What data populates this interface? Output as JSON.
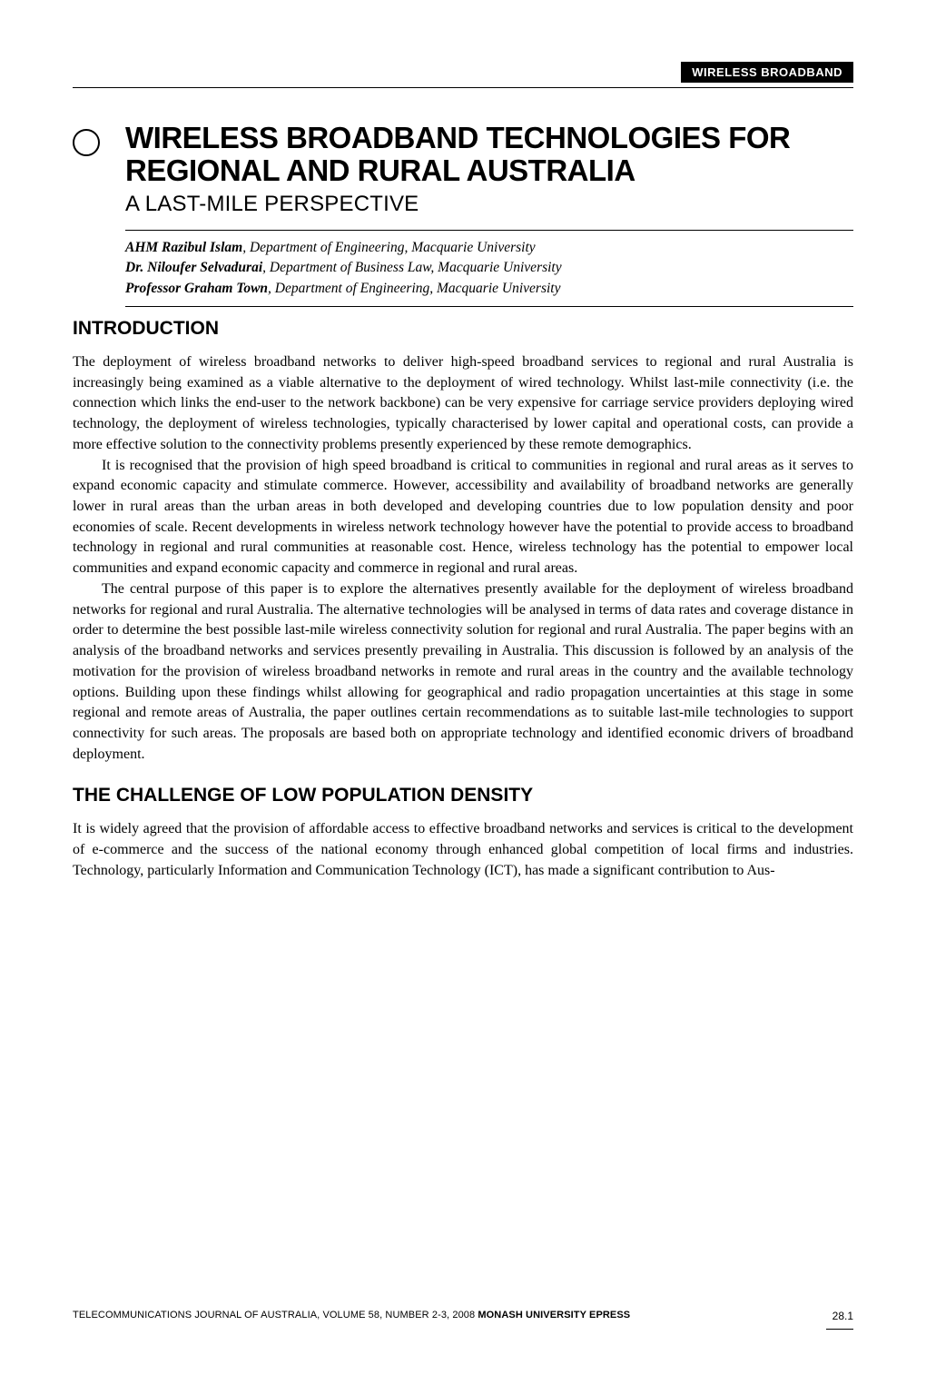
{
  "header": {
    "tag": "WIRELESS BROADBAND"
  },
  "title": {
    "line1": "WIRELESS BROADBAND TECHNOLOGIES FOR",
    "line2": "REGIONAL AND RURAL AUSTRALIA",
    "subtitle": "A LAST-MILE PERSPECTIVE"
  },
  "authors": [
    {
      "name": "AHM Razibul Islam",
      "affil": ", Department of Engineering, Macquarie University"
    },
    {
      "name": "Dr. Niloufer Selvadurai",
      "affil": ", Department of Business Law, Macquarie University"
    },
    {
      "name": "Professor Graham Town",
      "affil": ", Department of Engineering, Macquarie University"
    }
  ],
  "sections": [
    {
      "heading": "INTRODUCTION",
      "paragraphs": [
        "The deployment of wireless broadband networks to deliver high-speed broadband services to regional and rural Australia is increasingly being examined as a viable alternative to the deployment of wired technology. Whilst last-mile connectivity (i.e. the connection which links the end-user to the network backbone) can be very expensive for carriage service providers deploying wired technology, the deployment of wireless technologies, typically characterised by lower capital and operational costs, can provide a more effective solution to the connectivity problems presently experienced by these remote demographics.",
        "It is recognised that the provision of high speed broadband is critical to communities in regional and rural areas as it serves to expand economic capacity and stimulate commerce. However, accessibility and availability of broadband networks are generally lower in rural areas than the urban areas in both developed and developing countries due to low population density and poor economies of scale. Recent developments in wireless network technology however have the potential to provide access to broadband technology in regional and rural communities at reasonable cost. Hence, wireless technology has the potential to empower local communities and expand economic capacity and commerce in regional and rural areas.",
        "The central purpose of this paper is to explore the alternatives presently available for the deployment of wireless broadband networks for regional and rural Australia. The alternative technologies will be analysed in terms of data rates and coverage distance in order to determine the best possible last-mile wireless connectivity solution for regional and rural Australia. The paper begins with an analysis of the broadband networks and services presently prevailing in Australia. This discussion is followed by an analysis of the motivation for the provision of wireless broadband networks in remote and rural areas in the country and the available technology options. Building upon these findings whilst allowing for geographical and radio propagation uncertainties at this stage in some regional and remote areas of Australia, the paper outlines certain recommendations as to suitable last-mile technologies to support connectivity for such areas. The proposals are based both on appropriate technology and identified economic drivers of broadband deployment."
      ]
    },
    {
      "heading": "THE CHALLENGE OF LOW POPULATION DENSITY",
      "paragraphs": [
        "It is widely agreed that the provision of affordable access to effective broadband networks and services is critical to the development of e-commerce and the success of the national economy through enhanced global competition of local firms and industries. Technology, particularly Information and Communication Technology (ICT), has made a significant contribution to Aus-"
      ]
    }
  ],
  "footer": {
    "line_plain": "TELECOMMUNICATIONS JOURNAL OF AUSTRALIA, VOLUME 58, NUMBER 2-3, 2008 ",
    "line_bold": "MONASH UNIVERSITY EPRESS",
    "page": "28.1"
  },
  "colors": {
    "background": "#ffffff",
    "text": "#000000",
    "header_bg": "#000000",
    "header_fg": "#ffffff"
  }
}
